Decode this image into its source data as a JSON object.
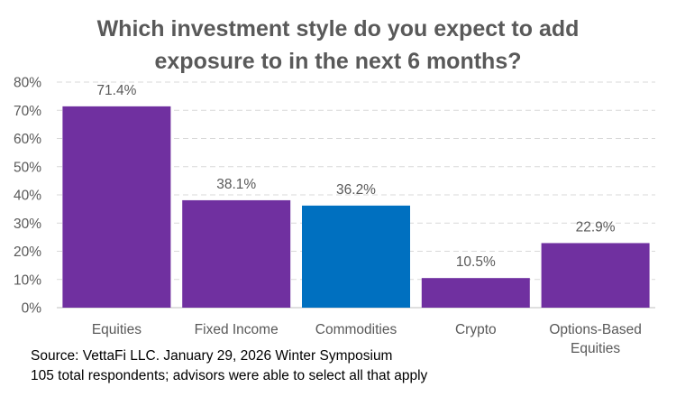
{
  "chart_data": {
    "type": "bar",
    "title": {
      "line1": "Which investment style do you expect to add",
      "line2": "exposure to in the next 6 months?"
    },
    "categories": [
      [
        "Equities"
      ],
      [
        "Fixed Income"
      ],
      [
        "Commodities"
      ],
      [
        "Crypto"
      ],
      [
        "Options-Based",
        "Equities"
      ]
    ],
    "values": [
      71.4,
      38.1,
      36.2,
      10.5,
      22.9
    ],
    "data_labels": [
      "71.4%",
      "38.1%",
      "36.2%",
      "10.5%",
      "22.9%"
    ],
    "bar_colors": [
      "#7030a0",
      "#7030a0",
      "#0070c0",
      "#7030a0",
      "#7030a0"
    ],
    "ylim": [
      0,
      80
    ],
    "yticks": [
      0,
      10,
      20,
      30,
      40,
      50,
      60,
      70,
      80
    ],
    "ytick_labels": [
      "0%",
      "10%",
      "20%",
      "30%",
      "40%",
      "50%",
      "60%",
      "70%",
      "80%"
    ],
    "grid": true,
    "xlabel": "",
    "ylabel": ""
  },
  "footnote": {
    "source": "Source: VettaFi LLC. January 29, 2026 Winter Symposium",
    "note": "105 total respondents; advisors were able to select all that apply"
  },
  "colors": {
    "purple": "#7030a0",
    "blue": "#0070c0",
    "gridline": "#d9d9d9",
    "text": "#595959"
  }
}
